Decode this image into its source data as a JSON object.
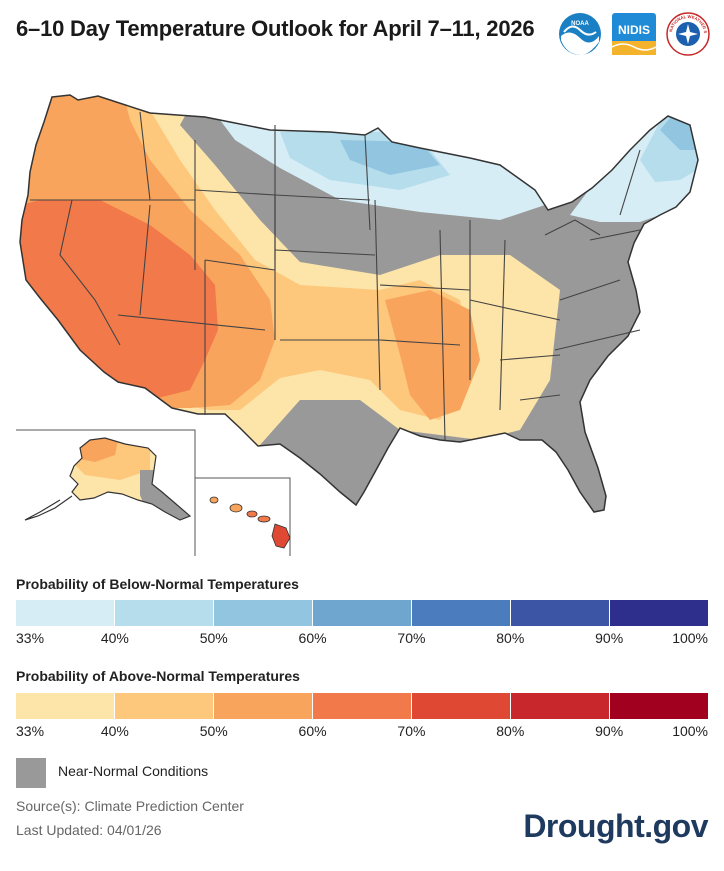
{
  "title": "6–10 Day Temperature Outlook for April 7–11, 2026",
  "logos": [
    {
      "name": "NOAA",
      "text": "NOAA"
    },
    {
      "name": "NIDIS",
      "text": "NIDIS"
    },
    {
      "name": "National Weather Service",
      "text": "NATIONAL WEATHER SERVICE"
    }
  ],
  "legend": {
    "below": {
      "title": "Probability of Below-Normal Temperatures",
      "colors": [
        "#d6edf6",
        "#b5ddec",
        "#92c5e0",
        "#6ea6d0",
        "#4b7cbd",
        "#3c55a5",
        "#2e2e8c"
      ],
      "ticks": [
        "33%",
        "40%",
        "50%",
        "60%",
        "70%",
        "80%",
        "90%",
        "100%"
      ]
    },
    "above": {
      "title": "Probability of Above-Normal Temperatures",
      "colors": [
        "#fde4a9",
        "#fdc77c",
        "#f9a45c",
        "#f27a4a",
        "#df4934",
        "#c8282b",
        "#a1001f"
      ],
      "ticks": [
        "33%",
        "40%",
        "50%",
        "60%",
        "70%",
        "80%",
        "90%",
        "100%"
      ]
    },
    "near_normal": {
      "label": "Near-Normal Conditions",
      "color": "#999999"
    }
  },
  "source": "Source(s): Climate Prediction Center",
  "updated": "Last Updated: 04/01/26",
  "brand": "Drought.gov"
}
